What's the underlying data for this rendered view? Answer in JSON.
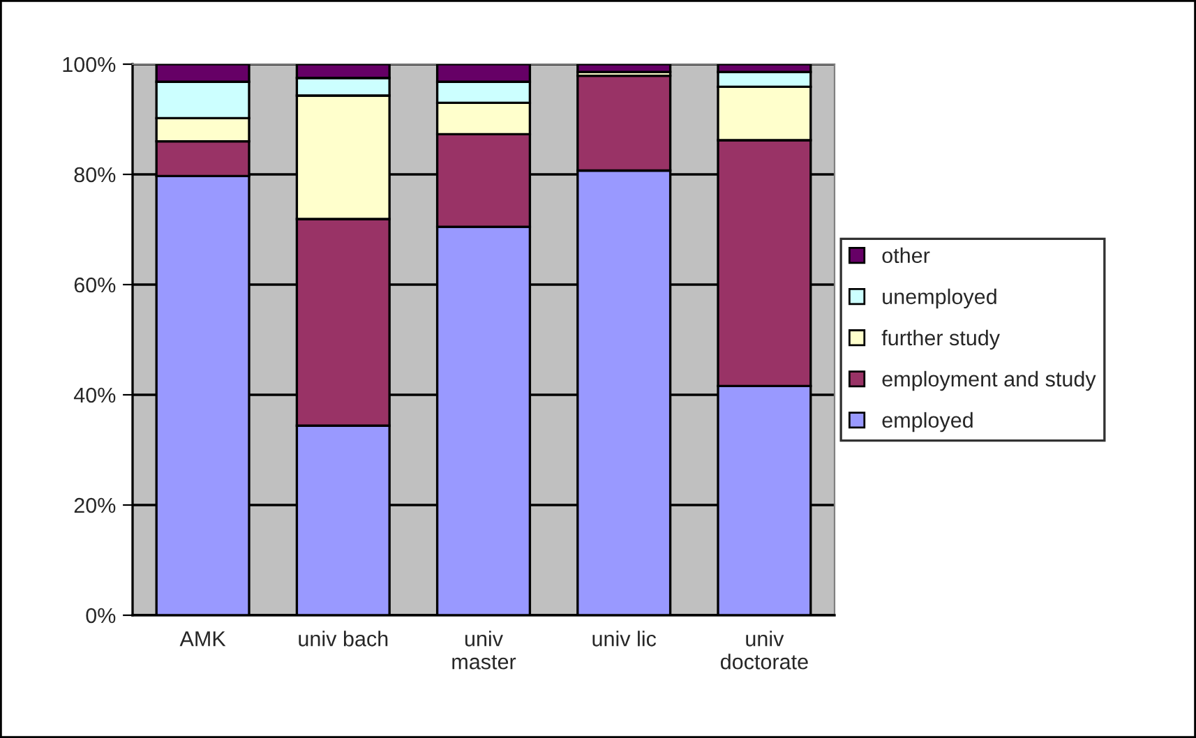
{
  "chart_data": {
    "type": "bar",
    "stacked": true,
    "categories": [
      "AMK",
      "univ bach",
      "univ\nmaster",
      "univ lic",
      "univ\ndoctorate"
    ],
    "series": [
      {
        "name": "employed",
        "color": "#9999ff",
        "values": [
          79.7,
          34.4,
          70.5,
          80.7,
          41.6
        ]
      },
      {
        "name": "employment and study",
        "color": "#993366",
        "values": [
          6.3,
          37.5,
          16.8,
          17.2,
          44.6
        ]
      },
      {
        "name": "further study",
        "color": "#ffffcc",
        "values": [
          4.2,
          22.4,
          5.7,
          0.7,
          9.7
        ]
      },
      {
        "name": "unemployed",
        "color": "#ccffff",
        "values": [
          6.6,
          3.2,
          3.8,
          0,
          2.7
        ]
      },
      {
        "name": "other",
        "color": "#660066",
        "values": [
          3.2,
          2.5,
          3.2,
          1.4,
          1.4
        ]
      }
    ],
    "ylim": [
      0,
      100
    ],
    "yticks": [
      {
        "value": 0,
        "label": "0%"
      },
      {
        "value": 20,
        "label": "20%"
      },
      {
        "value": 40,
        "label": "40%"
      },
      {
        "value": 60,
        "label": "60%"
      },
      {
        "value": 80,
        "label": "80%"
      },
      {
        "value": 100,
        "label": "100%"
      }
    ],
    "grid": "y",
    "legend": "right"
  }
}
